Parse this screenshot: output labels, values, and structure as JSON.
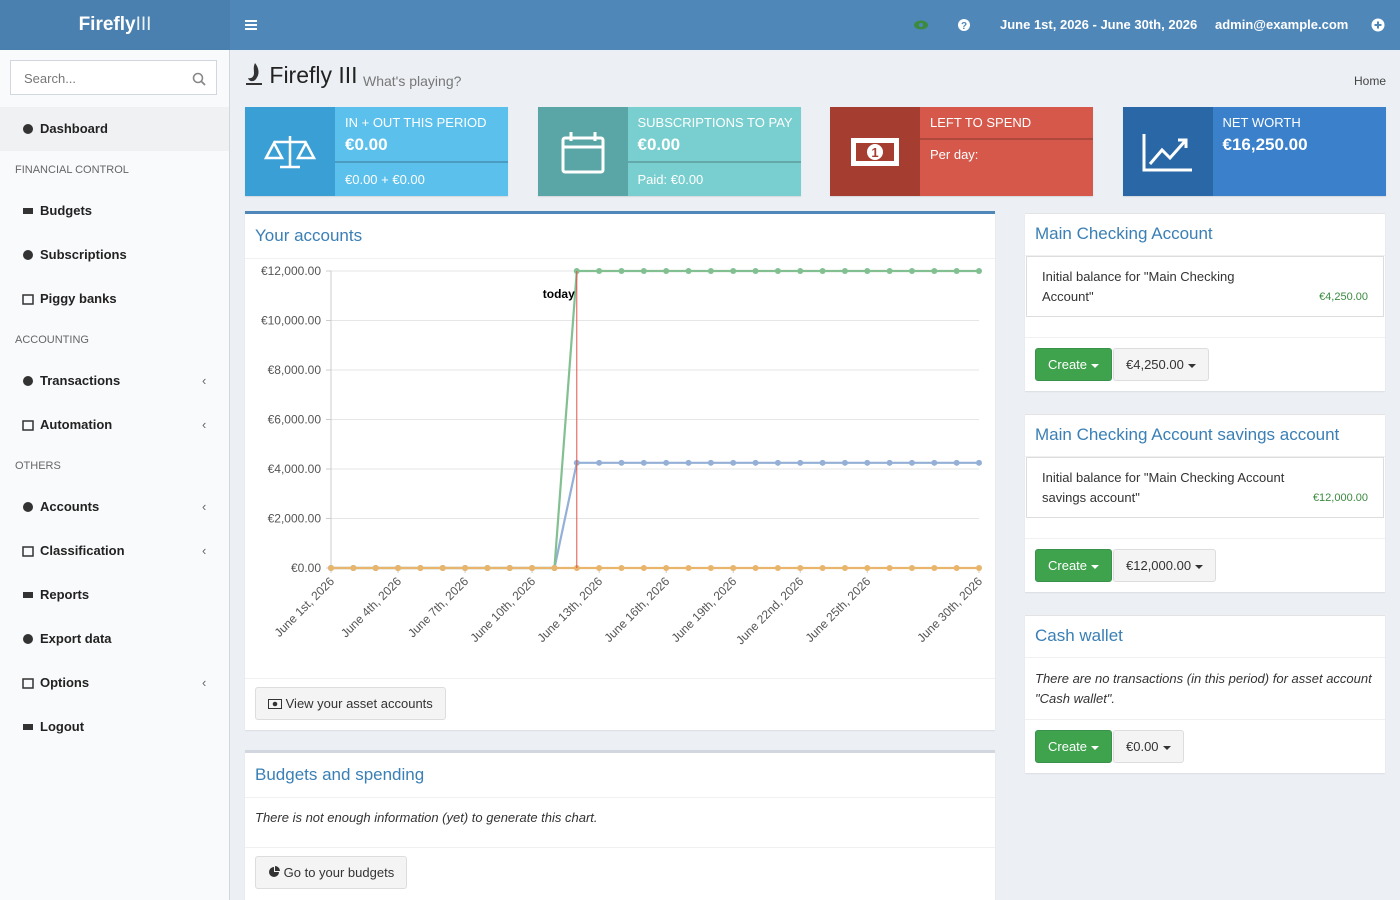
{
  "header": {
    "brand": "Firefly",
    "brand_suffix": "III",
    "date_range": "June 1st, 2026 - June 30th, 2026",
    "user": "admin@example.com"
  },
  "sidebar": {
    "search_placeholder": "Search...",
    "menu": [
      {
        "label": "Dashboard",
        "active": true
      },
      {
        "header": "FINANCIAL CONTROL"
      },
      {
        "label": "Budgets"
      },
      {
        "label": "Subscriptions"
      },
      {
        "label": "Piggy banks"
      },
      {
        "header": "ACCOUNTING"
      },
      {
        "label": "Transactions",
        "submenu": true
      },
      {
        "label": "Automation",
        "submenu": true
      },
      {
        "header": "OTHERS"
      },
      {
        "label": "Accounts",
        "submenu": true
      },
      {
        "label": "Classification",
        "submenu": true
      },
      {
        "label": "Reports"
      },
      {
        "label": "Export data"
      },
      {
        "label": "Options",
        "submenu": true
      },
      {
        "label": "Logout"
      }
    ]
  },
  "page": {
    "title": "Firefly III",
    "subtitle": "What's playing?",
    "breadcrumb": "Home"
  },
  "info_boxes": [
    {
      "label": "IN + OUT THIS PERIOD",
      "value": "€0.00",
      "footer": "€0.00 + €0.00",
      "icon_color": "#3a9fd4",
      "color": "#5bc0ec"
    },
    {
      "label": "SUBSCRIPTIONS TO PAY",
      "value": "€0.00",
      "footer": "Paid: €0.00",
      "icon_color": "#5aa5a5",
      "color": "#79cfcf"
    },
    {
      "label": "LEFT TO SPEND",
      "footer": "Per day:",
      "icon_color": "#a63d31",
      "color": "#d5584b"
    },
    {
      "label": "NET WORTH",
      "value": "€16,250.00",
      "icon_color": "#2a67a6",
      "color": "#3a80cb"
    }
  ],
  "accounts_card": {
    "title": "Your accounts",
    "button": "View your asset accounts"
  },
  "chart_data": {
    "type": "line",
    "categories": [
      "June 1st, 2026",
      null,
      null,
      "June 4th, 2026",
      null,
      null,
      "June 7th, 2026",
      null,
      null,
      "June 10th, 2026",
      null,
      null,
      "June 13th, 2026",
      null,
      null,
      "June 16th, 2026",
      null,
      null,
      "June 19th, 2026",
      null,
      null,
      "June 22nd, 2026",
      null,
      null,
      "June 25th, 2026",
      null,
      null,
      null,
      null,
      "June 30th, 2026"
    ],
    "series": [
      {
        "color": "#94b0d6",
        "values": [
          0,
          0,
          0,
          0,
          0,
          0,
          0,
          0,
          0,
          0,
          0,
          4250,
          4250,
          4250,
          4250,
          4250,
          4250,
          4250,
          4250,
          4250,
          4250,
          4250,
          4250,
          4250,
          4250,
          4250,
          4250,
          4250,
          4250,
          4250
        ]
      },
      {
        "color": "#82c092",
        "values": [
          0,
          0,
          0,
          0,
          0,
          0,
          0,
          0,
          0,
          0,
          0,
          12000,
          12000,
          12000,
          12000,
          12000,
          12000,
          12000,
          12000,
          12000,
          12000,
          12000,
          12000,
          12000,
          12000,
          12000,
          12000,
          12000,
          12000,
          12000
        ]
      },
      {
        "color": "#e9b46c",
        "values": [
          0,
          0,
          0,
          0,
          0,
          0,
          0,
          0,
          0,
          0,
          0,
          0,
          0,
          0,
          0,
          0,
          0,
          0,
          0,
          0,
          0,
          0,
          0,
          0,
          0,
          0,
          0,
          0,
          0,
          0
        ]
      }
    ],
    "ylim": [
      0,
      12000
    ],
    "yticks": [
      {
        "value": 0,
        "label": "€0.00"
      },
      {
        "value": 2000,
        "label": "€2,000.00"
      },
      {
        "value": 4000,
        "label": "€4,000.00"
      },
      {
        "value": 6000,
        "label": "€6,000.00"
      },
      {
        "value": 8000,
        "label": "€8,000.00"
      },
      {
        "value": 10000,
        "label": "€10,000.00"
      },
      {
        "value": 12000,
        "label": "€12,000.00"
      }
    ],
    "grid": true,
    "annotation": {
      "text": "today",
      "at": 11,
      "color": "#e0534a"
    }
  },
  "budgets_card": {
    "title": "Budgets and spending",
    "message": "There is not enough information (yet) to generate this chart.",
    "button": "Go to your budgets"
  },
  "account_cards": [
    {
      "title": "Main Checking Account",
      "transaction": {
        "description": "Initial balance for \"Main Checking Account\"",
        "amount": "€4,250.00"
      },
      "create_button": "Create",
      "balance_button": "€4,250.00"
    },
    {
      "title": "Main Checking Account savings account",
      "transaction": {
        "description": "Initial balance for \"Main Checking Account savings account\"",
        "amount": "€12,000.00"
      },
      "create_button": "Create",
      "balance_button": "€12,000.00"
    },
    {
      "title": "Cash wallet",
      "message": "There are no transactions (in this period) for asset account \"Cash wallet\".",
      "create_button": "Create",
      "balance_button": "€0.00"
    }
  ]
}
